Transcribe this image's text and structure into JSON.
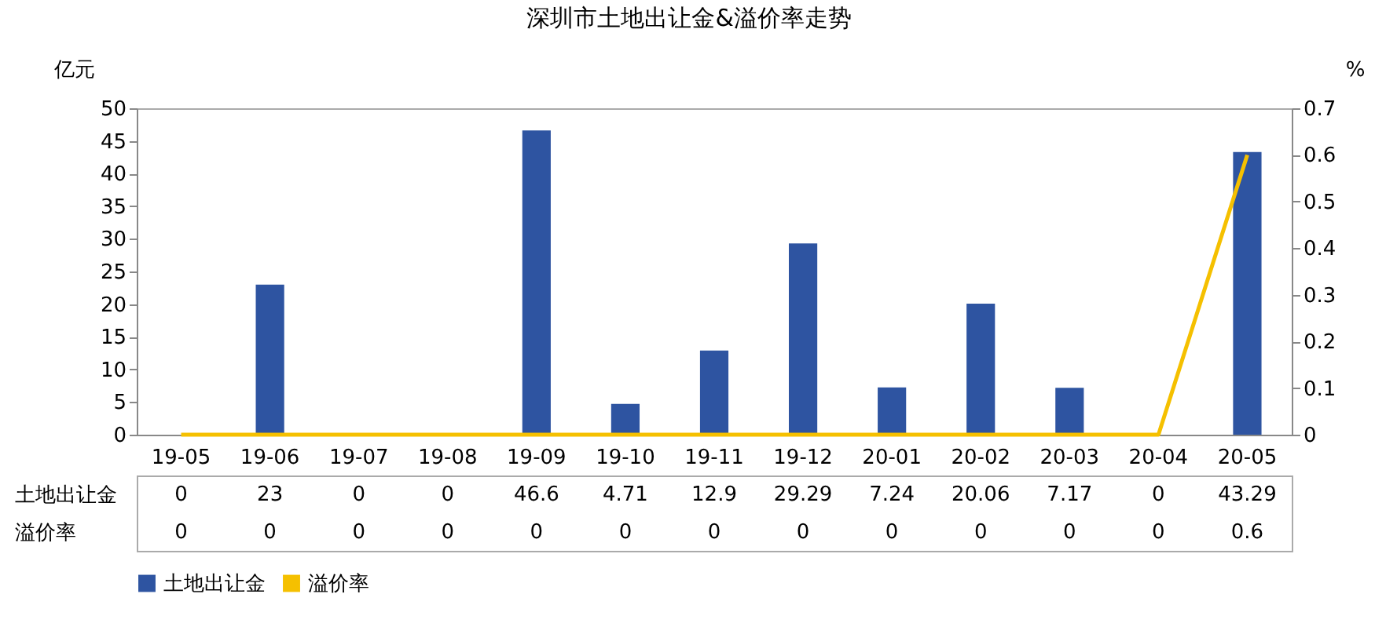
{
  "chart_data": {
    "type": "bar",
    "title": "深圳市土地出让金&溢价率走势",
    "ylabel": "亿元",
    "y2label": "%",
    "categories": [
      "19-05",
      "19-06",
      "19-07",
      "19-08",
      "19-09",
      "19-10",
      "19-11",
      "19-12",
      "20-01",
      "20-02",
      "20-03",
      "20-04",
      "20-05"
    ],
    "series": [
      {
        "name": "土地出让金",
        "color": "#2e54a1",
        "values": [
          0,
          23,
          0,
          0,
          46.6,
          4.71,
          12.9,
          29.29,
          7.24,
          20.06,
          7.17,
          0,
          43.29
        ]
      },
      {
        "name": "溢价率",
        "type": "line",
        "axis": "y2",
        "color": "#f5c000",
        "values": [
          0,
          0,
          0,
          0,
          0,
          0,
          0,
          0,
          0,
          0,
          0,
          0,
          0.6
        ]
      }
    ],
    "ylim": [
      0,
      50
    ],
    "yticks": [
      0,
      5,
      10,
      15,
      20,
      25,
      30,
      35,
      40,
      45,
      50
    ],
    "y2lim": [
      0,
      0.7
    ],
    "y2ticks": [
      0,
      0.1,
      0.2,
      0.3,
      0.4,
      0.5,
      0.6,
      0.7
    ],
    "data_labels": true,
    "grid": false,
    "legend": "bottom"
  }
}
